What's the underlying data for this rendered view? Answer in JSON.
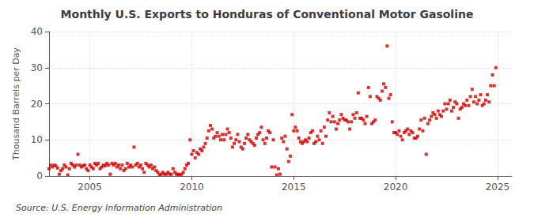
{
  "chart_data": {
    "type": "scatter",
    "title": "Monthly U.S. Exports to Honduras of Conventional Motor Gasoline",
    "ylabel": "Thousand Barrels per Day",
    "annotation": "Source: U.S. Energy Information Administration",
    "color": "#cc0000",
    "marker": "square",
    "grid": true,
    "xlim": [
      2003.0,
      2025.7
    ],
    "xticks": [
      2005,
      2010,
      2015,
      2020,
      2025
    ],
    "ylim": [
      0,
      40
    ],
    "yticks": [
      0,
      10,
      20,
      30,
      40
    ],
    "x": [
      2003.0,
      2003.083,
      2003.167,
      2003.25,
      2003.333,
      2003.417,
      2003.5,
      2003.583,
      2003.667,
      2003.75,
      2003.833,
      2003.917,
      2004.0,
      2004.083,
      2004.167,
      2004.25,
      2004.333,
      2004.417,
      2004.5,
      2004.583,
      2004.667,
      2004.75,
      2004.833,
      2004.917,
      2005.0,
      2005.083,
      2005.167,
      2005.25,
      2005.333,
      2005.417,
      2005.5,
      2005.583,
      2005.667,
      2005.75,
      2005.833,
      2005.917,
      2006.0,
      2006.083,
      2006.167,
      2006.25,
      2006.333,
      2006.417,
      2006.5,
      2006.583,
      2006.667,
      2006.75,
      2006.833,
      2006.917,
      2007.0,
      2007.083,
      2007.167,
      2007.25,
      2007.333,
      2007.417,
      2007.5,
      2007.583,
      2007.667,
      2007.75,
      2007.833,
      2007.917,
      2008.0,
      2008.083,
      2008.167,
      2008.25,
      2008.333,
      2008.417,
      2008.5,
      2008.583,
      2008.667,
      2008.75,
      2008.833,
      2008.917,
      2009.0,
      2009.083,
      2009.167,
      2009.25,
      2009.333,
      2009.417,
      2009.5,
      2009.583,
      2009.667,
      2009.75,
      2009.833,
      2009.917,
      2010.0,
      2010.083,
      2010.167,
      2010.25,
      2010.333,
      2010.417,
      2010.5,
      2010.583,
      2010.667,
      2010.75,
      2010.833,
      2010.917,
      2011.0,
      2011.083,
      2011.167,
      2011.25,
      2011.333,
      2011.417,
      2011.5,
      2011.583,
      2011.667,
      2011.75,
      2011.833,
      2011.917,
      2012.0,
      2012.083,
      2012.167,
      2012.25,
      2012.333,
      2012.417,
      2012.5,
      2012.583,
      2012.667,
      2012.75,
      2012.833,
      2012.917,
      2013.0,
      2013.083,
      2013.167,
      2013.25,
      2013.333,
      2013.417,
      2013.5,
      2013.583,
      2013.667,
      2013.75,
      2013.833,
      2013.917,
      2014.0,
      2014.083,
      2014.167,
      2014.25,
      2014.333,
      2014.417,
      2014.5,
      2014.583,
      2014.667,
      2014.75,
      2014.833,
      2014.917,
      2015.0,
      2015.083,
      2015.167,
      2015.25,
      2015.333,
      2015.417,
      2015.5,
      2015.583,
      2015.667,
      2015.75,
      2015.833,
      2015.917,
      2016.0,
      2016.083,
      2016.167,
      2016.25,
      2016.333,
      2016.417,
      2016.5,
      2016.583,
      2016.667,
      2016.75,
      2016.833,
      2016.917,
      2017.0,
      2017.083,
      2017.167,
      2017.25,
      2017.333,
      2017.417,
      2017.5,
      2017.583,
      2017.667,
      2017.75,
      2017.833,
      2017.917,
      2018.0,
      2018.083,
      2018.167,
      2018.25,
      2018.333,
      2018.417,
      2018.5,
      2018.583,
      2018.667,
      2018.75,
      2018.833,
      2018.917,
      2019.0,
      2019.083,
      2019.167,
      2019.25,
      2019.333,
      2019.417,
      2019.5,
      2019.583,
      2019.667,
      2019.75,
      2019.833,
      2019.917,
      2020.0,
      2020.083,
      2020.167,
      2020.25,
      2020.333,
      2020.417,
      2020.5,
      2020.583,
      2020.667,
      2020.75,
      2020.833,
      2020.917,
      2021.0,
      2021.083,
      2021.167,
      2021.25,
      2021.333,
      2021.417,
      2021.5,
      2021.583,
      2021.667,
      2021.75,
      2021.833,
      2021.917,
      2022.0,
      2022.083,
      2022.167,
      2022.25,
      2022.333,
      2022.417,
      2022.5,
      2022.583,
      2022.667,
      2022.75,
      2022.833,
      2022.917,
      2023.0,
      2023.083,
      2023.167,
      2023.25,
      2023.333,
      2023.417,
      2023.5,
      2023.583,
      2023.667,
      2023.75,
      2023.833,
      2023.917,
      2024.0,
      2024.083,
      2024.167,
      2024.25,
      2024.333,
      2024.417,
      2024.5,
      2024.583,
      2024.667,
      2024.75,
      2024.833,
      2024.917
    ],
    "values": [
      2.0,
      3.0,
      2.5,
      3.0,
      2.8,
      2.2,
      0.5,
      1.5,
      2.0,
      3.0,
      2.5,
      0.3,
      2.0,
      3.5,
      3.0,
      2.5,
      3.0,
      6.0,
      3.0,
      2.5,
      2.8,
      3.0,
      2.0,
      1.5,
      3.0,
      2.5,
      2.0,
      3.5,
      3.0,
      3.5,
      2.0,
      2.5,
      3.0,
      2.8,
      3.5,
      3.0,
      0.5,
      3.5,
      3.0,
      3.5,
      2.5,
      3.0,
      2.0,
      3.0,
      1.5,
      2.0,
      3.5,
      2.5,
      3.0,
      2.5,
      8.0,
      3.0,
      3.5,
      2.5,
      3.0,
      2.0,
      1.0,
      3.5,
      3.0,
      2.5,
      3.0,
      2.0,
      2.5,
      1.5,
      1.0,
      0.3,
      0.5,
      1.0,
      0.5,
      0.5,
      1.0,
      0.5,
      0.5,
      2.0,
      1.0,
      0.5,
      0.5,
      0.3,
      0.5,
      1.0,
      2.0,
      3.0,
      3.5,
      10.0,
      6.0,
      7.0,
      5.0,
      6.5,
      6.0,
      7.5,
      7.0,
      8.0,
      9.0,
      10.5,
      12.5,
      14.0,
      13.0,
      10.5,
      11.0,
      12.0,
      11.0,
      10.0,
      11.5,
      10.0,
      11.5,
      13.0,
      12.0,
      10.5,
      8.0,
      9.0,
      10.0,
      11.5,
      9.5,
      8.0,
      7.5,
      9.0,
      10.5,
      11.5,
      10.0,
      9.5,
      9.0,
      8.5,
      10.5,
      11.5,
      12.0,
      13.5,
      10.0,
      9.0,
      10.5,
      12.5,
      12.0,
      2.5,
      10.0,
      2.5,
      0.3,
      2.0,
      0.5,
      10.5,
      9.5,
      11.0,
      7.5,
      4.0,
      5.5,
      17.0,
      12.5,
      13.5,
      12.5,
      10.5,
      9.5,
      9.0,
      9.5,
      10.0,
      9.5,
      10.5,
      12.0,
      12.5,
      9.0,
      9.5,
      11.0,
      10.0,
      12.5,
      9.0,
      13.5,
      11.0,
      15.5,
      17.5,
      15.0,
      16.5,
      15.0,
      13.0,
      14.5,
      15.5,
      17.0,
      16.0,
      15.5,
      15.5,
      15.0,
      13.0,
      15.0,
      17.0,
      16.0,
      17.5,
      23.0,
      16.0,
      16.0,
      15.5,
      14.5,
      16.5,
      24.5,
      22.0,
      14.5,
      15.0,
      15.5,
      22.0,
      21.5,
      21.0,
      23.5,
      25.5,
      24.5,
      36.0,
      21.5,
      22.5,
      15.0,
      12.0,
      12.0,
      11.5,
      12.5,
      11.0,
      10.0,
      12.0,
      12.5,
      13.0,
      11.5,
      12.5,
      12.0,
      10.5,
      10.5,
      11.0,
      13.0,
      15.5,
      12.5,
      16.0,
      6.0,
      14.5,
      15.5,
      16.5,
      17.5,
      17.0,
      16.0,
      18.0,
      17.0,
      16.5,
      18.0,
      20.0,
      18.5,
      20.0,
      21.0,
      18.0,
      19.0,
      20.5,
      20.0,
      16.0,
      18.5,
      19.0,
      20.0,
      19.5,
      21.0,
      19.5,
      22.0,
      24.0,
      20.5,
      22.0,
      20.0,
      21.0,
      22.5,
      19.5,
      20.0,
      21.0,
      22.5,
      20.5,
      25.0,
      28.0,
      25.0,
      30.0
    ]
  }
}
